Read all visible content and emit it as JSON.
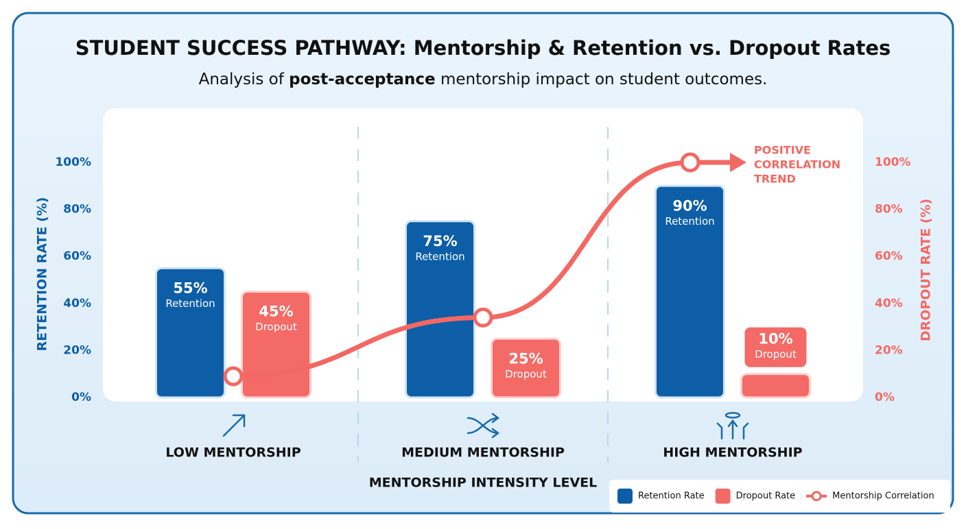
{
  "chart_data": {
    "type": "bar",
    "title": "STUDENT SUCCESS PATHWAY: Mentorship & Retention vs. Dropout Rates",
    "subtitle_parts": [
      "Analysis of ",
      "post-acceptance",
      " mentorship impact on student outcomes."
    ],
    "categories": [
      "LOW MENTORSHIP",
      "MEDIUM MENTORSHIP",
      "HIGH MENTORSHIP"
    ],
    "x_label": "MENTORSHIP INTENSITY LEVEL",
    "y_label": "RETENTION RATE (%)",
    "y2_label": "DROPOUT RATE (%)",
    "ylim": [
      0,
      100
    ],
    "yticks": [
      {
        "value": 0,
        "label": "0%"
      },
      {
        "value": 20,
        "label": "20%"
      },
      {
        "value": 40,
        "label": "40%"
      },
      {
        "value": 60,
        "label": "60%"
      },
      {
        "value": 80,
        "label": "80%"
      },
      {
        "value": 100,
        "label": "100%"
      }
    ],
    "y2lim": [
      0,
      100
    ],
    "y2ticks": [
      {
        "value": 0,
        "label": "0%"
      },
      {
        "value": 20,
        "label": "20%"
      },
      {
        "value": 40,
        "label": "40%"
      },
      {
        "value": 60,
        "label": "60%"
      },
      {
        "value": 80,
        "label": "80%"
      },
      {
        "value": 100,
        "label": "100%"
      }
    ],
    "series": [
      {
        "name": "Retention Rate",
        "color": "#0d5ea6",
        "values": [
          55,
          75,
          90
        ],
        "value_labels": [
          "55%",
          "75%",
          "90%"
        ],
        "bar_label": "Retention"
      },
      {
        "name": "Dropout Rate",
        "color": "#f36a66",
        "axis": "y2",
        "values": [
          45,
          25,
          10
        ],
        "value_labels": [
          "45%",
          "25%",
          "10%"
        ],
        "bar_label": "Dropout"
      },
      {
        "name": "Mentorship Correlation",
        "type": "line",
        "color": "#f26863",
        "values": [
          9,
          34,
          100
        ]
      }
    ],
    "annotation": [
      "POSITIVE",
      "CORRELATION",
      "TREND"
    ],
    "legend": "bottom-right"
  }
}
